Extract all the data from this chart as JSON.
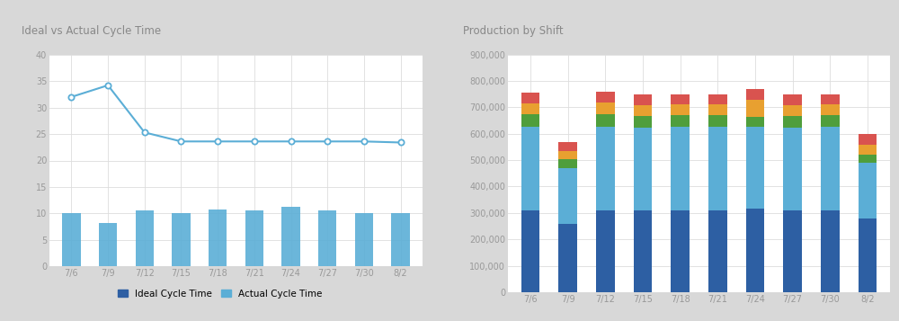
{
  "categories": [
    "7/6",
    "7/9",
    "7/12",
    "7/15",
    "7/18",
    "7/21",
    "7/24",
    "7/27",
    "7/30",
    "8/2"
  ],
  "left": {
    "title": "Ideal vs Actual Cycle Time",
    "bar_values": [
      10,
      8.2,
      10.5,
      10.1,
      10.7,
      10.6,
      11.3,
      10.5,
      10.1,
      10.1
    ],
    "line_values": [
      32,
      34.2,
      25.3,
      23.6,
      23.6,
      23.6,
      23.6,
      23.6,
      23.6,
      23.4
    ],
    "bar_color": "#5baed6",
    "line_color": "#5baed6",
    "bar_legend_color": "#2e5fa3",
    "bar_legend": "Ideal Cycle Time",
    "line_legend": "Actual Cycle Time",
    "ylim": [
      0,
      40
    ],
    "yticks": [
      0,
      5,
      10,
      15,
      20,
      25,
      30,
      35,
      40
    ]
  },
  "right": {
    "title": "Production by Shift",
    "shift1": [
      310000,
      260000,
      310000,
      308000,
      310000,
      310000,
      315000,
      308000,
      310000,
      280000
    ],
    "shift2": [
      315000,
      210000,
      315000,
      315000,
      315000,
      315000,
      310000,
      315000,
      315000,
      210000
    ],
    "shift3": [
      48000,
      33000,
      48000,
      45000,
      45000,
      45000,
      40000,
      45000,
      45000,
      30000
    ],
    "shift4": [
      42000,
      30000,
      45000,
      40000,
      40000,
      40000,
      65000,
      40000,
      40000,
      38000
    ],
    "shift5": [
      40000,
      37000,
      42000,
      42000,
      40000,
      40000,
      40000,
      42000,
      40000,
      42000
    ],
    "colors": [
      "#2d5fa3",
      "#5baed6",
      "#4f9e3c",
      "#e8a030",
      "#d9534f"
    ],
    "ylim": [
      0,
      900000
    ],
    "yticks": [
      0,
      100000,
      200000,
      300000,
      400000,
      500000,
      600000,
      700000,
      800000,
      900000
    ]
  },
  "outer_bg": "#d8d8d8",
  "card_bg": "#f0f0f0",
  "plot_bg": "#ffffff",
  "header_bg": "#e8e8e8",
  "title_color": "#888888",
  "tick_color": "#999999",
  "grid_color": "#dddddd"
}
